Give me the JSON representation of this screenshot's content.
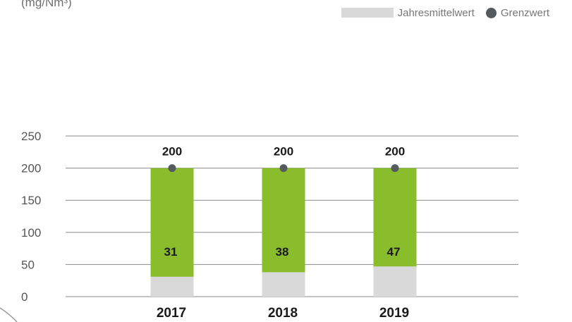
{
  "unit_label": "(mg/Nm³)",
  "legend": {
    "series_a": "Jahresmittelwert",
    "series_b": "Grenzwert"
  },
  "colors": {
    "limit_fill": "#8abd2c",
    "mean_fill": "#d9d9d9",
    "dot": "#555a5e",
    "grid": "#8a8a8a",
    "tick_text": "#555555",
    "label_text": "#1a1a1a"
  },
  "chart_data": {
    "type": "bar",
    "categories": [
      "2017",
      "2018",
      "2019"
    ],
    "series": [
      {
        "name": "Jahresmittelwert",
        "values": [
          31,
          38,
          47
        ]
      },
      {
        "name": "Grenzwert",
        "values": [
          200,
          200,
          200
        ]
      }
    ],
    "title": "",
    "xlabel": "",
    "ylabel": "(mg/Nm³)",
    "ylim": [
      0,
      250
    ],
    "yticks": [
      0,
      50,
      100,
      150,
      200,
      250
    ],
    "grid": true,
    "legend_position": "top-right"
  }
}
